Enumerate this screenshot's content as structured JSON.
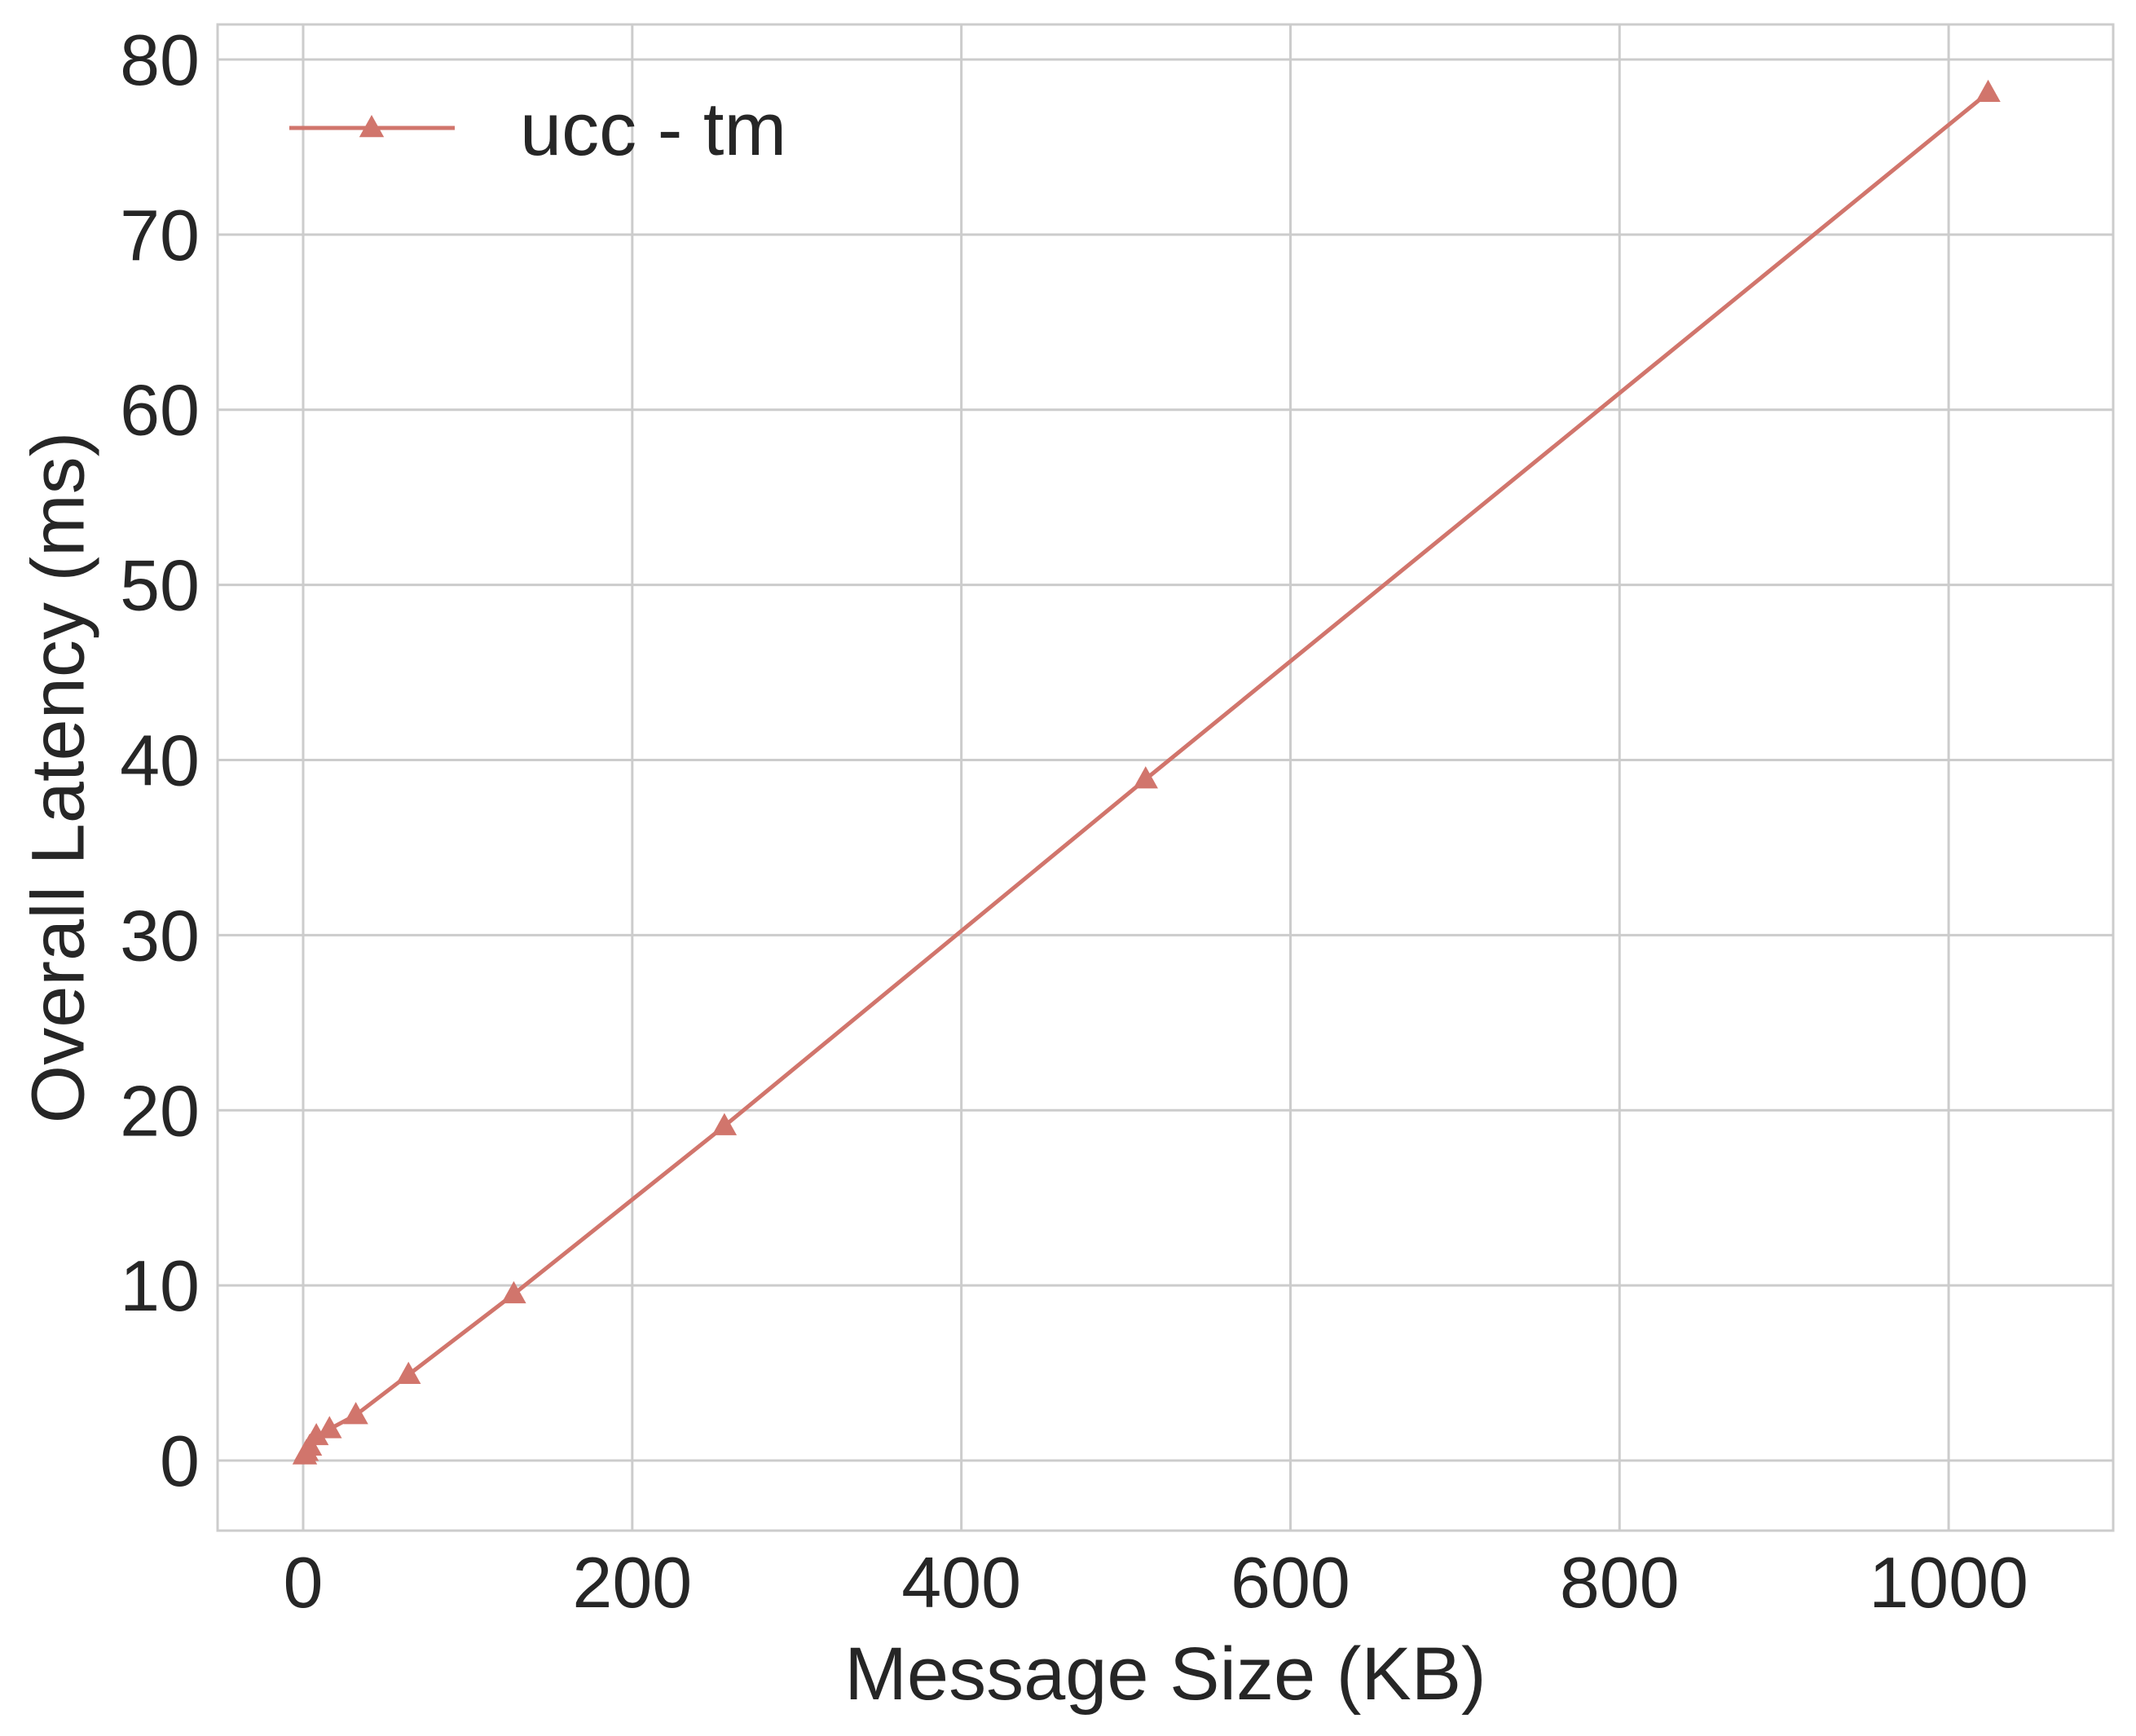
{
  "chart_data": {
    "type": "line",
    "title": "",
    "xlabel": "Message Size (KB)",
    "ylabel": "Overall Latency (ms)",
    "xlim": [
      -52,
      1100
    ],
    "ylim": [
      -4,
      82
    ],
    "xticks": [
      0,
      200,
      400,
      600,
      800,
      1000
    ],
    "yticks": [
      0,
      10,
      20,
      30,
      40,
      50,
      60,
      70,
      80
    ],
    "xtick_labels": [
      "0",
      "200",
      "400",
      "600",
      "800",
      "1000"
    ],
    "ytick_labels": [
      "0",
      "10",
      "20",
      "30",
      "40",
      "50",
      "60",
      "70",
      "80"
    ],
    "grid": true,
    "legend_position": "upper-left",
    "series": [
      {
        "name": "ucc - tm",
        "color": "#d1756c",
        "marker": "triangle-up",
        "x": [
          1,
          2,
          4,
          8,
          16,
          32,
          64,
          128,
          256,
          512,
          1024
        ],
        "y": [
          0.3,
          0.5,
          0.8,
          1.4,
          1.8,
          2.6,
          4.9,
          9.5,
          19.1,
          38.9,
          78.1
        ]
      }
    ]
  }
}
